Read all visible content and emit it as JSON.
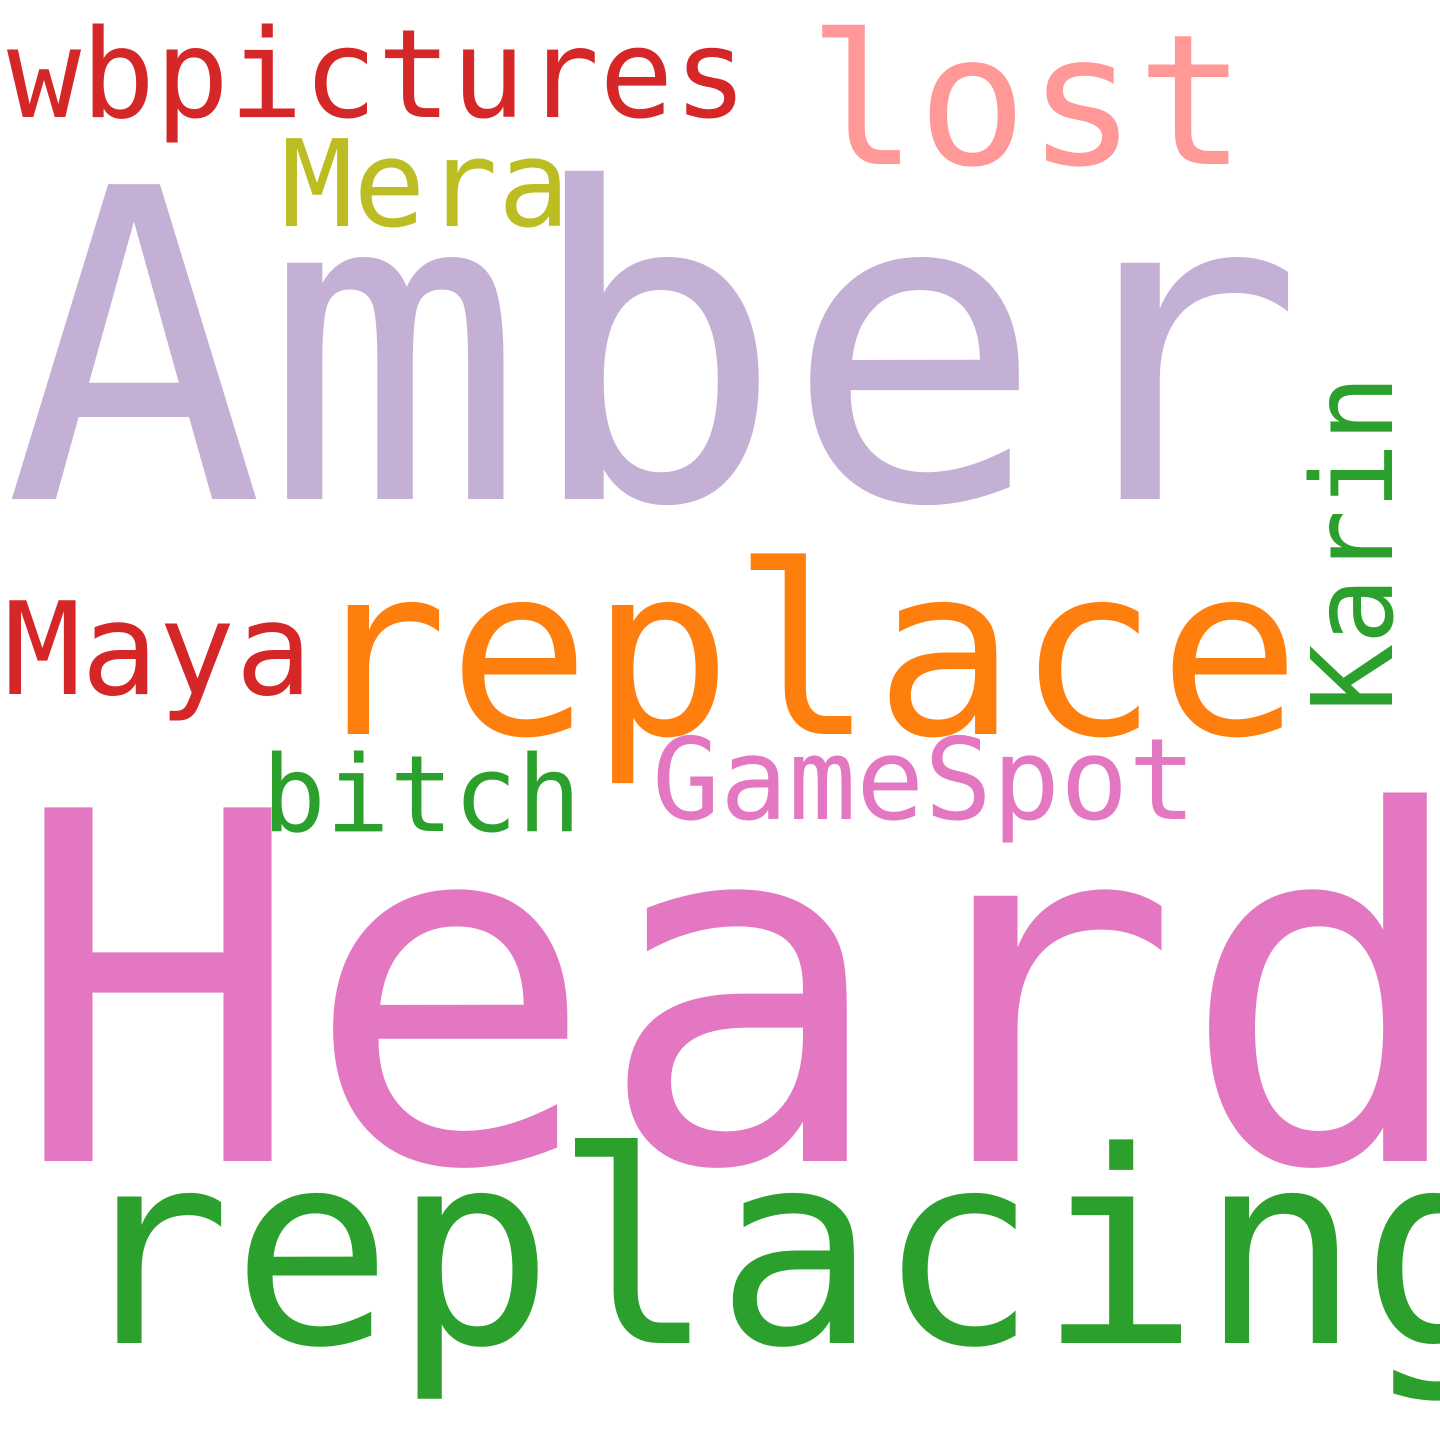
{
  "background": "#ffffff",
  "words": {
    "amber": {
      "text": "Amber",
      "color": "#c5b0d5"
    },
    "heard": {
      "text": "Heard",
      "color": "#e377c2"
    },
    "replacing": {
      "text": "replacing",
      "color": "#2ca02c"
    },
    "replace": {
      "text": "replace",
      "color": "#ff7f0e"
    },
    "wbpictures": {
      "text": "wbpictures",
      "color": "#d62728"
    },
    "lost": {
      "text": "lost",
      "color": "#ff9896"
    },
    "mera": {
      "text": "Mera",
      "color": "#bcbd22"
    },
    "maya": {
      "text": "Maya",
      "color": "#d62728"
    },
    "gamespot": {
      "text": "GameSpot",
      "color": "#e377c2"
    },
    "bitch": {
      "text": "bitch",
      "color": "#2ca02c"
    },
    "karin": {
      "text": "Karin",
      "color": "#2ca02c"
    }
  }
}
